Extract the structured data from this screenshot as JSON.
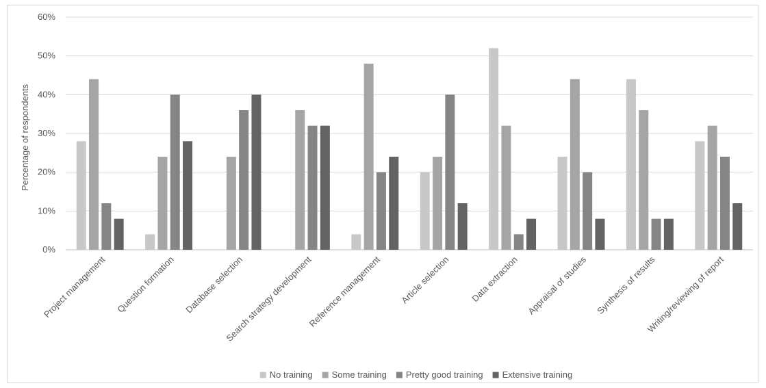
{
  "chart_data": {
    "type": "bar",
    "title": "",
    "xlabel": "",
    "ylabel": "Percentage of respondents",
    "ylim": [
      0,
      60
    ],
    "yticks": [
      "0%",
      "10%",
      "20%",
      "30%",
      "40%",
      "50%",
      "60%"
    ],
    "grid": true,
    "legend_position": "bottom",
    "categories": [
      "Project management",
      "Question formation",
      "Database selection",
      "Search strategy development",
      "Reference management",
      "Article selection",
      "Data extraction",
      "Appraisal of studies",
      "Synthesis of results",
      "Writing/reviewing of report"
    ],
    "series": [
      {
        "name": "No training",
        "color": "#c8c8c8",
        "values": [
          28,
          4,
          0,
          0,
          4,
          20,
          52,
          24,
          44,
          28
        ]
      },
      {
        "name": "Some training",
        "color": "#a5a5a5",
        "values": [
          44,
          24,
          24,
          36,
          48,
          24,
          32,
          44,
          36,
          32
        ]
      },
      {
        "name": "Pretty good training",
        "color": "#858585",
        "values": [
          12,
          40,
          36,
          32,
          20,
          40,
          4,
          20,
          8,
          24
        ]
      },
      {
        "name": "Extensive training",
        "color": "#636363",
        "values": [
          8,
          28,
          40,
          32,
          24,
          12,
          8,
          8,
          8,
          12
        ]
      }
    ]
  }
}
